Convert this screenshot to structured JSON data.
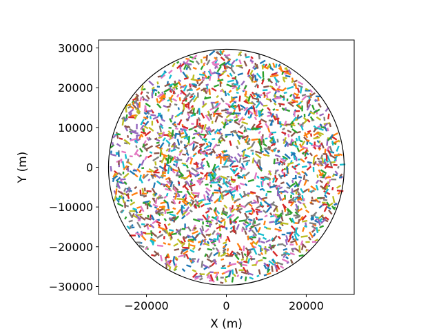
{
  "chart_data": {
    "type": "scatter",
    "title": "",
    "xlabel": "X (m)",
    "ylabel": "Y (m)",
    "xlim": [
      -32000,
      32000
    ],
    "ylim": [
      -32000,
      32000
    ],
    "xticks": [
      -20000,
      0,
      20000
    ],
    "xtick_labels": [
      "−20000",
      "0",
      "20000"
    ],
    "yticks": [
      -30000,
      -20000,
      -10000,
      0,
      10000,
      20000,
      30000
    ],
    "ytick_labels": [
      "−30000",
      "−20000",
      "−10000",
      "0",
      "10000",
      "20000",
      "30000"
    ],
    "grid": false,
    "legend": "none",
    "boundary_circle": {
      "center": [
        0,
        0
      ],
      "radius": 29500,
      "color": "#000000"
    },
    "series_colors": [
      "#1f77b4",
      "#ff7f0e",
      "#2ca02c",
      "#d62728",
      "#9467bd",
      "#8c564b",
      "#e377c2",
      "#7f7f7f",
      "#bcbd22",
      "#17becf"
    ],
    "segments": {
      "description_note": "",
      "count": 2200,
      "length_range_m": [
        600,
        1800
      ]
    }
  }
}
